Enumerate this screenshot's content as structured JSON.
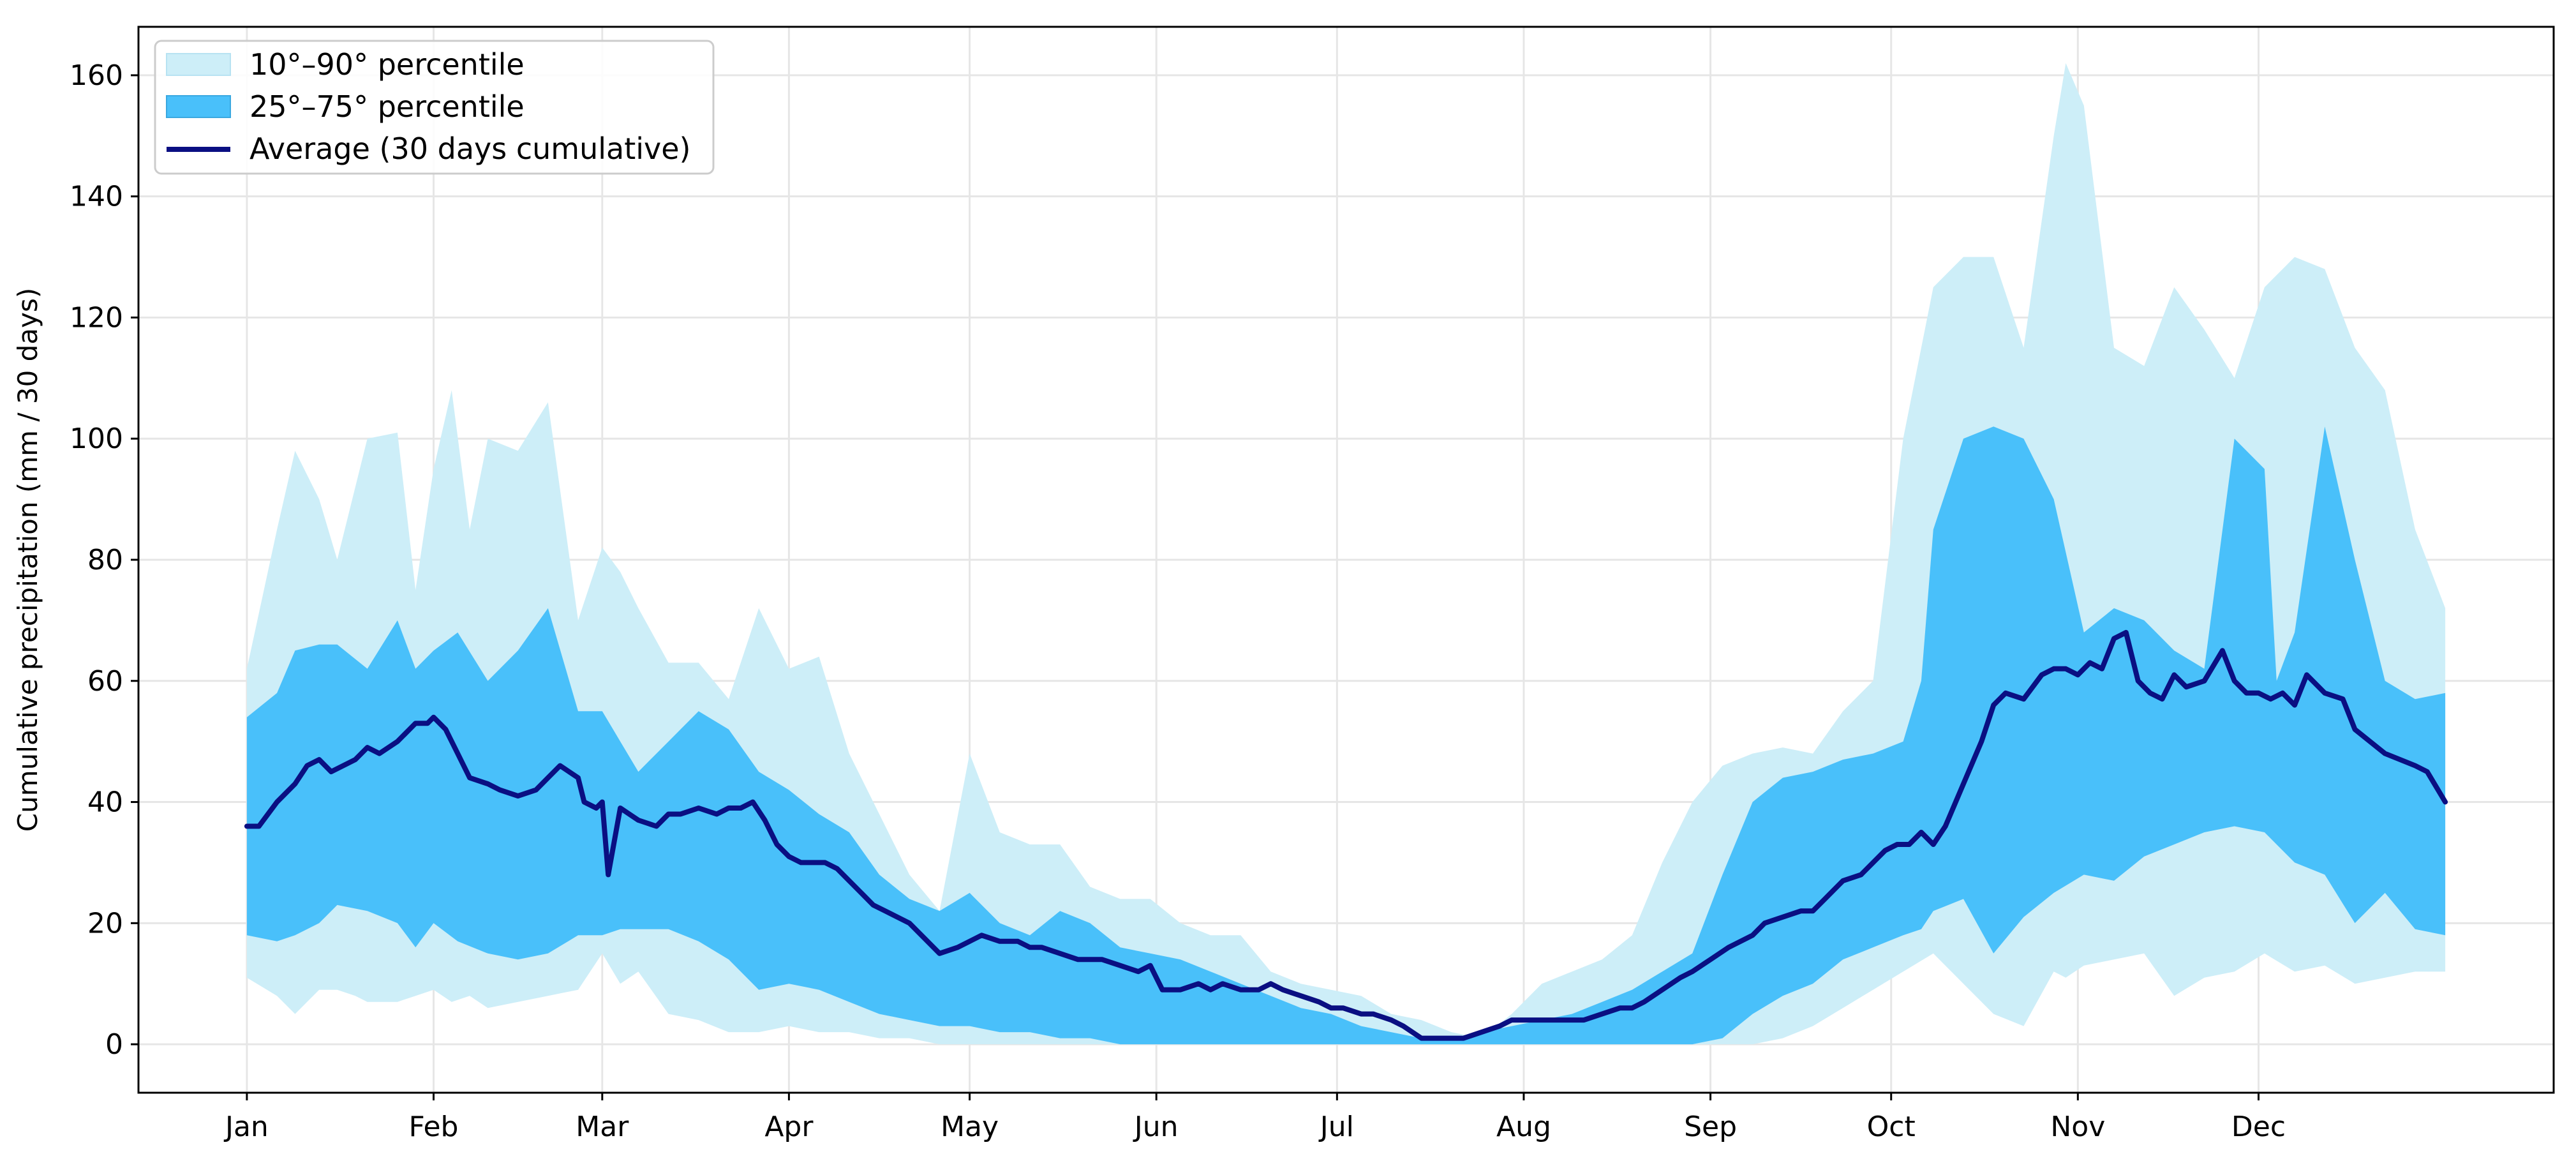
{
  "chart_data": {
    "type": "area",
    "ylabel": "Cumulative precipitation (mm / 30 days)",
    "xlabel": "",
    "title": "",
    "ylim": [
      -8,
      168
    ],
    "xlim": [
      -18,
      383
    ],
    "y_ticks": [
      0,
      20,
      40,
      60,
      80,
      100,
      120,
      140,
      160
    ],
    "x_ticks": [
      {
        "day": 0,
        "label": "Jan"
      },
      {
        "day": 31,
        "label": "Feb"
      },
      {
        "day": 59,
        "label": "Mar"
      },
      {
        "day": 90,
        "label": "Apr"
      },
      {
        "day": 120,
        "label": "May"
      },
      {
        "day": 151,
        "label": "Jun"
      },
      {
        "day": 181,
        "label": "Jul"
      },
      {
        "day": 212,
        "label": "Aug"
      },
      {
        "day": 243,
        "label": "Sep"
      },
      {
        "day": 273,
        "label": "Oct"
      },
      {
        "day": 304,
        "label": "Nov"
      },
      {
        "day": 334,
        "label": "Dec"
      }
    ],
    "grid": true,
    "legend_position": "top-left",
    "series": [
      {
        "name": "10°–90° percentile",
        "kind": "band",
        "color": "#cdeef8",
        "x": [
          0,
          5,
          8,
          12,
          15,
          18,
          20,
          25,
          28,
          31,
          34,
          37,
          40,
          45,
          50,
          55,
          59,
          62,
          65,
          70,
          75,
          80,
          85,
          90,
          95,
          100,
          105,
          110,
          115,
          120,
          125,
          130,
          135,
          140,
          145,
          150,
          155,
          160,
          165,
          170,
          175,
          180,
          185,
          190,
          195,
          200,
          205,
          210,
          215,
          220,
          225,
          230,
          235,
          240,
          245,
          250,
          255,
          260,
          265,
          270,
          275,
          280,
          285,
          290,
          295,
          300,
          302,
          305,
          310,
          315,
          320,
          325,
          330,
          335,
          340,
          345,
          350,
          355,
          360,
          365
        ],
        "upper": [
          62,
          85,
          98,
          90,
          80,
          92,
          100,
          101,
          75,
          95,
          108,
          85,
          100,
          98,
          106,
          70,
          82,
          78,
          72,
          63,
          63,
          57,
          72,
          62,
          64,
          48,
          38,
          28,
          22,
          48,
          35,
          33,
          33,
          26,
          24,
          24,
          20,
          18,
          18,
          12,
          10,
          9,
          8,
          5,
          4,
          2,
          1,
          5,
          10,
          12,
          14,
          18,
          30,
          40,
          46,
          48,
          49,
          48,
          55,
          60,
          100,
          125,
          130,
          130,
          115,
          150,
          162,
          155,
          115,
          112,
          125,
          118,
          110,
          125,
          130,
          128,
          115,
          108,
          85,
          72
        ],
        "lower": [
          11,
          8,
          5,
          9,
          9,
          8,
          7,
          7,
          8,
          9,
          7,
          8,
          6,
          7,
          8,
          9,
          15,
          10,
          12,
          5,
          4,
          2,
          2,
          3,
          2,
          2,
          1,
          1,
          0,
          0,
          0,
          0,
          0,
          0,
          0,
          0,
          0,
          0,
          0,
          0,
          0,
          0,
          0,
          0,
          0,
          0,
          0,
          0,
          0,
          0,
          0,
          0,
          0,
          0,
          0,
          0,
          1,
          3,
          6,
          9,
          12,
          15,
          10,
          5,
          3,
          12,
          11,
          13,
          14,
          15,
          8,
          11,
          12,
          15,
          12,
          13,
          10,
          11,
          12,
          12
        ]
      },
      {
        "name": "25°–75° percentile",
        "kind": "band",
        "color": "#49c0fa",
        "x": [
          0,
          5,
          8,
          12,
          15,
          20,
          25,
          28,
          31,
          35,
          40,
          45,
          50,
          55,
          59,
          62,
          65,
          70,
          75,
          80,
          85,
          90,
          95,
          100,
          105,
          110,
          115,
          120,
          125,
          130,
          135,
          140,
          145,
          150,
          155,
          160,
          165,
          170,
          175,
          180,
          185,
          190,
          195,
          200,
          205,
          210,
          215,
          220,
          225,
          230,
          235,
          240,
          245,
          250,
          255,
          260,
          265,
          270,
          275,
          278,
          280,
          285,
          290,
          295,
          300,
          305,
          310,
          315,
          320,
          325,
          330,
          335,
          337,
          340,
          345,
          350,
          355,
          360,
          365
        ],
        "upper": [
          54,
          58,
          65,
          66,
          66,
          62,
          70,
          62,
          65,
          68,
          60,
          65,
          72,
          55,
          55,
          50,
          45,
          50,
          55,
          52,
          45,
          42,
          38,
          35,
          28,
          24,
          22,
          25,
          20,
          18,
          22,
          20,
          16,
          15,
          14,
          12,
          10,
          8,
          6,
          5,
          3,
          2,
          1,
          1,
          2,
          3,
          4,
          5,
          7,
          9,
          12,
          15,
          28,
          40,
          44,
          45,
          47,
          48,
          50,
          60,
          85,
          100,
          102,
          100,
          90,
          68,
          72,
          70,
          65,
          62,
          100,
          95,
          60,
          68,
          102,
          80,
          60,
          57,
          58
        ],
        "lower": [
          18,
          17,
          18,
          20,
          23,
          22,
          20,
          16,
          20,
          17,
          15,
          14,
          15,
          18,
          18,
          19,
          19,
          19,
          17,
          14,
          9,
          10,
          9,
          7,
          5,
          4,
          3,
          3,
          2,
          2,
          1,
          1,
          0,
          0,
          0,
          0,
          0,
          0,
          0,
          0,
          0,
          0,
          0,
          0,
          0,
          0,
          0,
          0,
          0,
          0,
          0,
          0,
          1,
          5,
          8,
          10,
          14,
          16,
          18,
          19,
          22,
          24,
          15,
          21,
          25,
          28,
          27,
          31,
          33,
          35,
          36,
          35,
          33,
          30,
          28,
          20,
          25,
          19,
          18
        ]
      },
      {
        "name": "Average (30 days cumulative)",
        "kind": "line",
        "color": "#0a0f82",
        "x": [
          0,
          2,
          5,
          8,
          10,
          12,
          14,
          16,
          18,
          20,
          22,
          25,
          28,
          30,
          31,
          33,
          35,
          37,
          40,
          42,
          45,
          48,
          50,
          52,
          55,
          56,
          58,
          59,
          60,
          62,
          65,
          68,
          70,
          72,
          75,
          78,
          80,
          82,
          84,
          86,
          88,
          90,
          92,
          94,
          96,
          98,
          100,
          102,
          104,
          106,
          108,
          110,
          112,
          115,
          118,
          120,
          122,
          125,
          128,
          130,
          132,
          135,
          138,
          140,
          142,
          145,
          148,
          150,
          152,
          155,
          158,
          160,
          162,
          165,
          168,
          170,
          172,
          175,
          178,
          180,
          182,
          185,
          187,
          190,
          192,
          195,
          198,
          200,
          202,
          205,
          208,
          210,
          212,
          215,
          218,
          220,
          222,
          225,
          228,
          230,
          232,
          235,
          238,
          240,
          243,
          246,
          250,
          252,
          255,
          258,
          260,
          262,
          265,
          268,
          270,
          272,
          274,
          276,
          278,
          280,
          282,
          285,
          288,
          290,
          292,
          295,
          298,
          300,
          302,
          304,
          306,
          308,
          310,
          312,
          314,
          316,
          318,
          320,
          322,
          325,
          328,
          330,
          332,
          334,
          336,
          338,
          340,
          342,
          345,
          348,
          350,
          355,
          360,
          362,
          365
        ],
        "values": [
          36,
          36,
          40,
          43,
          46,
          47,
          45,
          46,
          47,
          49,
          48,
          50,
          53,
          53,
          54,
          52,
          48,
          44,
          43,
          42,
          41,
          42,
          44,
          46,
          44,
          40,
          39,
          40,
          28,
          39,
          37,
          36,
          38,
          38,
          39,
          38,
          39,
          39,
          40,
          37,
          33,
          31,
          30,
          30,
          30,
          29,
          27,
          25,
          23,
          22,
          21,
          20,
          18,
          15,
          16,
          17,
          18,
          17,
          17,
          16,
          16,
          15,
          14,
          14,
          14,
          13,
          12,
          13,
          9,
          9,
          10,
          9,
          10,
          9,
          9,
          10,
          9,
          8,
          7,
          6,
          6,
          5,
          5,
          4,
          3,
          1,
          1,
          1,
          1,
          2,
          3,
          4,
          4,
          4,
          4,
          4,
          4,
          5,
          6,
          6,
          7,
          9,
          11,
          12,
          14,
          16,
          18,
          20,
          21,
          22,
          22,
          24,
          27,
          28,
          30,
          32,
          33,
          33,
          35,
          33,
          36,
          43,
          50,
          56,
          58,
          57,
          61,
          62,
          62,
          61,
          63,
          62,
          67,
          68,
          60,
          58,
          57,
          61,
          59,
          60,
          65,
          60,
          58,
          58,
          57,
          58,
          56,
          61,
          58,
          57,
          52,
          48,
          46,
          45,
          40
        ]
      }
    ]
  }
}
